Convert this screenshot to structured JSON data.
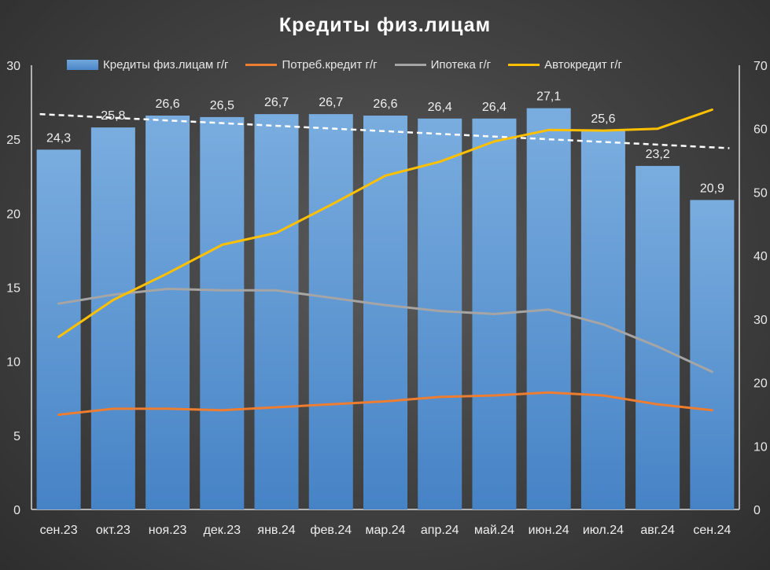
{
  "chart_data": {
    "type": "bar",
    "title": "Кредиты физ.лицам",
    "categories": [
      "сен.23",
      "окт.23",
      "ноя.23",
      "дек.23",
      "янв.24",
      "фев.24",
      "мар.24",
      "апр.24",
      "май.24",
      "июн.24",
      "июл.24",
      "авг.24",
      "сен.24"
    ],
    "y_left": {
      "min": 0,
      "max": 30,
      "ticks": [
        "0",
        "5",
        "10",
        "15",
        "20",
        "25",
        "30"
      ]
    },
    "y_right": {
      "min": 0,
      "max": 70,
      "ticks": [
        "0",
        "10",
        "20",
        "30",
        "40",
        "50",
        "60",
        "70"
      ]
    },
    "series": [
      {
        "name": "Кредиты физ.лицам г/г",
        "kind": "bar",
        "axis": "left",
        "color": "#5b9bd5",
        "values": [
          24.3,
          25.8,
          26.6,
          26.5,
          26.7,
          26.7,
          26.6,
          26.4,
          26.4,
          27.1,
          25.6,
          23.2,
          20.9
        ],
        "labels": [
          "24,3",
          "25,8",
          "26,6",
          "26,5",
          "26,7",
          "26,7",
          "26,6",
          "26,4",
          "26,4",
          "27,1",
          "25,6",
          "23,2",
          "20,9"
        ]
      },
      {
        "name": "Потреб.кредит г/г",
        "kind": "line",
        "axis": "left",
        "color": "#ed7d31",
        "values": [
          6.4,
          6.8,
          6.8,
          6.7,
          6.9,
          7.1,
          7.3,
          7.6,
          7.7,
          7.9,
          7.7,
          7.1,
          6.7
        ]
      },
      {
        "name": "Ипотека г/г",
        "kind": "line",
        "axis": "left",
        "color": "#a5a5a5",
        "values": [
          13.9,
          14.5,
          14.9,
          14.8,
          14.8,
          14.3,
          13.8,
          13.4,
          13.2,
          13.5,
          12.5,
          11.0,
          9.3
        ]
      },
      {
        "name": "Автокредит г/г",
        "kind": "line",
        "axis": "right",
        "color": "#ffc000",
        "values": [
          27.2,
          33.0,
          37.2,
          41.7,
          43.6,
          48.0,
          52.6,
          54.8,
          58.0,
          59.8,
          59.7,
          60.0,
          63.0
        ]
      }
    ],
    "trendline": {
      "of": "Кредиты физ.лицам г/г",
      "color": "#ffffff",
      "style": "dashed",
      "start": 26.7,
      "end": 24.4
    }
  }
}
